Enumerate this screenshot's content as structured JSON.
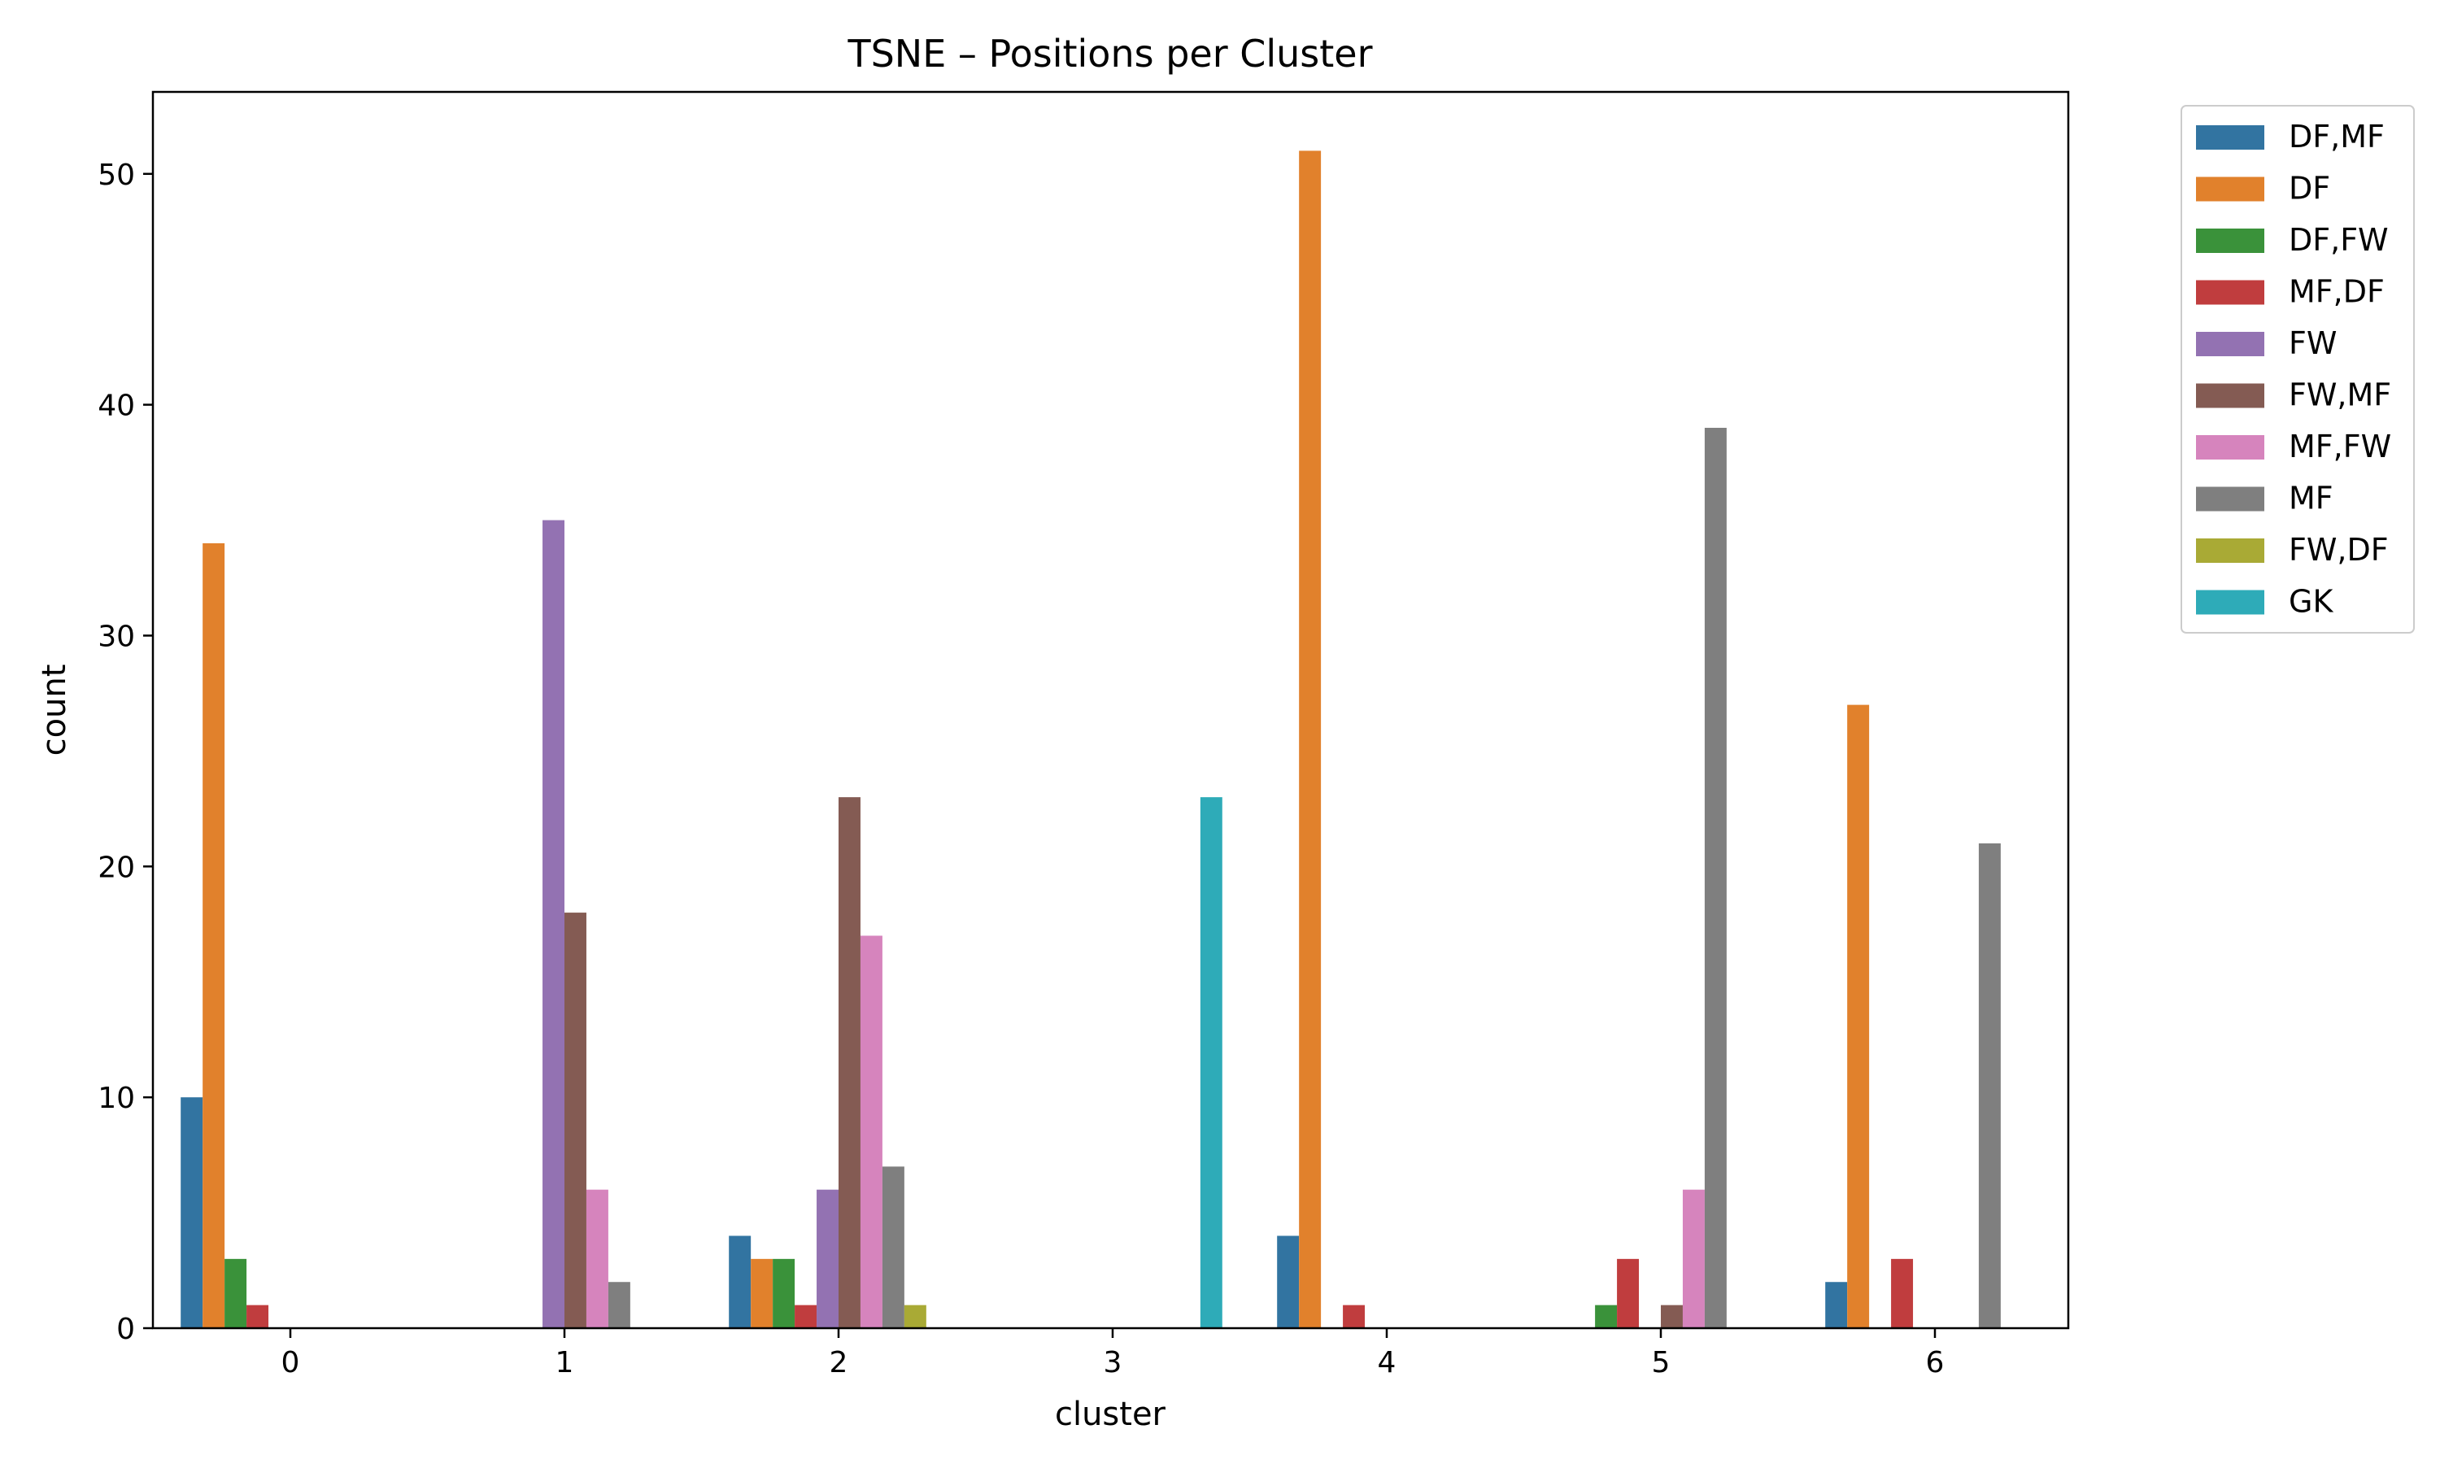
{
  "chart_data": {
    "type": "bar",
    "title": "TSNE – Positions per Cluster",
    "xlabel": "cluster",
    "ylabel": "count",
    "categories": [
      "0",
      "1",
      "2",
      "3",
      "4",
      "5",
      "6"
    ],
    "ylim": [
      0,
      53.55
    ],
    "yticks": [
      0,
      10,
      20,
      30,
      40,
      50
    ],
    "legend_position": "outside-top-right",
    "grid": false,
    "series": [
      {
        "name": "DF,MF",
        "color": "#3274a1",
        "values": [
          10,
          0,
          4,
          0,
          4,
          0,
          2
        ]
      },
      {
        "name": "DF",
        "color": "#e1812c",
        "values": [
          34,
          0,
          3,
          0,
          51,
          0,
          27
        ]
      },
      {
        "name": "DF,FW",
        "color": "#3a923a",
        "values": [
          3,
          0,
          3,
          0,
          0,
          1,
          0
        ]
      },
      {
        "name": "MF,DF",
        "color": "#c03d3e",
        "values": [
          1,
          0,
          1,
          0,
          1,
          3,
          3
        ]
      },
      {
        "name": "FW",
        "color": "#9372b2",
        "values": [
          0,
          35,
          6,
          0,
          0,
          0,
          0
        ]
      },
      {
        "name": "FW,MF",
        "color": "#845b53",
        "values": [
          0,
          18,
          23,
          0,
          0,
          1,
          0
        ]
      },
      {
        "name": "MF,FW",
        "color": "#d684bd",
        "values": [
          0,
          6,
          17,
          0,
          0,
          6,
          0
        ]
      },
      {
        "name": "MF",
        "color": "#7f7f7f",
        "values": [
          0,
          2,
          7,
          0,
          0,
          39,
          21
        ]
      },
      {
        "name": "FW,DF",
        "color": "#a9aa35",
        "values": [
          0,
          0,
          1,
          0,
          0,
          0,
          0
        ]
      },
      {
        "name": "GK",
        "color": "#2eabb8",
        "values": [
          0,
          0,
          0,
          23,
          0,
          0,
          0
        ]
      }
    ]
  }
}
